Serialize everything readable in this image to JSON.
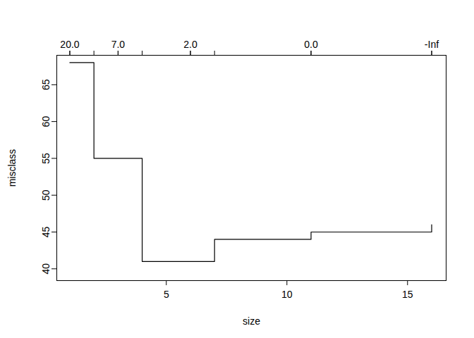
{
  "chart_data": {
    "type": "line",
    "line_style": "step",
    "color": "#000000",
    "x_label": "size",
    "y_label": "misclass",
    "x": [
      1,
      2,
      3,
      4,
      6,
      7,
      11,
      16
    ],
    "values": [
      68,
      55,
      55,
      41,
      41,
      44,
      45,
      46
    ],
    "xlim": [
      0.46,
      16.6
    ],
    "ylim": [
      38.4,
      69
    ],
    "xticks": [
      5,
      10,
      15
    ],
    "yticks": [
      40,
      45,
      50,
      55,
      60,
      65
    ],
    "x2ticks": [
      {
        "value": 1,
        "label": "20.0"
      },
      {
        "value": 3,
        "label": "7.0"
      },
      {
        "value": 6,
        "label": "2.0"
      },
      {
        "value": 11,
        "label": "0.0"
      },
      {
        "value": 16,
        "label": "-Inf"
      }
    ]
  }
}
